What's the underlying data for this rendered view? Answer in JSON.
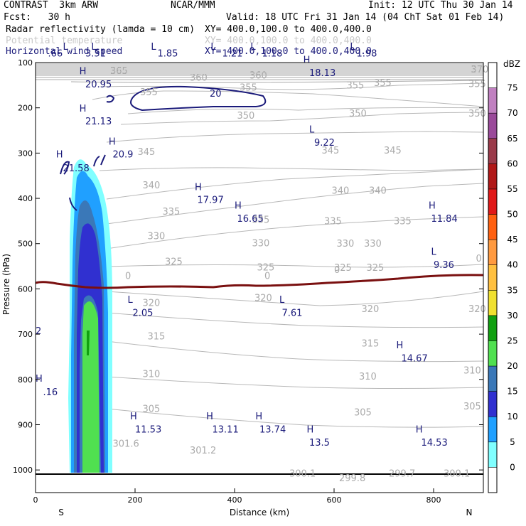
{
  "header": {
    "model": "CONTRAST  3km ARW",
    "org": "NCAR/MMM",
    "init": "Init: 12 UTC Thu 30 Jan 14",
    "fcst": "Fcst:   30 h",
    "valid": "Valid: 18 UTC Fri 31 Jan 14 (04 ChT Sat 01 Feb 14)",
    "fields": [
      {
        "name": "Radar reflectivity (lamda = 10 cm)",
        "xy": "XY= 400.0,100.0 to 400.0,400.0",
        "color": "#000000"
      },
      {
        "name": "Potential temperature",
        "xy": "XY= 400.0,100.0 to 400.0,400.0",
        "color": "#c8c8c8"
      },
      {
        "name": "Horizontal wind speed",
        "xy": "XY= 400.0,100.0 to 400.0,400.0",
        "color": "#1a1a7a"
      }
    ]
  },
  "chart_data": {
    "type": "cross-section",
    "xlabel": "Distance (km)",
    "ylabel": "Pressure (hPa)",
    "xlim": [
      0,
      900
    ],
    "ylim": [
      1050,
      100
    ],
    "x_ticks": [
      "0",
      "200",
      "400",
      "600",
      "800"
    ],
    "y_ticks": [
      "100",
      "200",
      "300",
      "400",
      "500",
      "600",
      "700",
      "800",
      "900",
      "1000"
    ],
    "x_end_labels": {
      "left": "S",
      "right": "N"
    },
    "colorbar": {
      "title": "dBZ",
      "labels": [
        "75",
        "70",
        "65",
        "60",
        "55",
        "50",
        "45",
        "40",
        "35",
        "30",
        "25",
        "20",
        "15",
        "10",
        "5",
        "0"
      ],
      "colors": [
        "#ffffff",
        "#c080c0",
        "#9a4a9a",
        "#9a3a4a",
        "#b01818",
        "#e01818",
        "#ff6010",
        "#ff9a40",
        "#ffc040",
        "#f0e030",
        "#10a010",
        "#50e050",
        "#3a78b8",
        "#3030d0",
        "#20a0ff",
        "#80ffff",
        "#ffffff"
      ]
    },
    "isentrope_labels": [
      {
        "text": "370",
        "x": 875,
        "p": 122
      },
      {
        "text": "365",
        "x": 150,
        "p": 125
      },
      {
        "text": "360",
        "x": 430,
        "p": 135
      },
      {
        "text": "360",
        "x": 310,
        "p": 140
      },
      {
        "text": "355",
        "x": 680,
        "p": 152
      },
      {
        "text": "355",
        "x": 870,
        "p": 154
      },
      {
        "text": "355",
        "x": 625,
        "p": 157
      },
      {
        "text": "355",
        "x": 410,
        "p": 162
      },
      {
        "text": "355",
        "x": 210,
        "p": 172
      },
      {
        "text": "350",
        "x": 405,
        "p": 224
      },
      {
        "text": "350",
        "x": 630,
        "p": 219
      },
      {
        "text": "350",
        "x": 870,
        "p": 219
      },
      {
        "text": "345",
        "x": 205,
        "p": 304
      },
      {
        "text": "345",
        "x": 575,
        "p": 301
      },
      {
        "text": "345",
        "x": 700,
        "p": 301
      },
      {
        "text": "340",
        "x": 215,
        "p": 378
      },
      {
        "text": "340",
        "x": 595,
        "p": 390
      },
      {
        "text": "340",
        "x": 670,
        "p": 390
      },
      {
        "text": "335",
        "x": 255,
        "p": 436
      },
      {
        "text": "335",
        "x": 435,
        "p": 454
      },
      {
        "text": "335",
        "x": 580,
        "p": 457
      },
      {
        "text": "335",
        "x": 720,
        "p": 457
      },
      {
        "text": "330",
        "x": 225,
        "p": 490
      },
      {
        "text": "330",
        "x": 435,
        "p": 506
      },
      {
        "text": "330",
        "x": 605,
        "p": 507
      },
      {
        "text": "330",
        "x": 660,
        "p": 507
      },
      {
        "text": "325",
        "x": 260,
        "p": 547
      },
      {
        "text": "325",
        "x": 445,
        "p": 559
      },
      {
        "text": "325",
        "x": 600,
        "p": 560
      },
      {
        "text": "325",
        "x": 665,
        "p": 560
      },
      {
        "text": "320",
        "x": 215,
        "p": 638
      },
      {
        "text": "320",
        "x": 440,
        "p": 627
      },
      {
        "text": "320",
        "x": 655,
        "p": 651
      },
      {
        "text": "320",
        "x": 870,
        "p": 651
      },
      {
        "text": "315",
        "x": 225,
        "p": 712
      },
      {
        "text": "315",
        "x": 655,
        "p": 727
      },
      {
        "text": "310",
        "x": 215,
        "p": 795
      },
      {
        "text": "310",
        "x": 650,
        "p": 800
      },
      {
        "text": "310",
        "x": 860,
        "p": 787
      },
      {
        "text": "305",
        "x": 215,
        "p": 872
      },
      {
        "text": "305",
        "x": 640,
        "p": 880
      },
      {
        "text": "305",
        "x": 860,
        "p": 866
      },
      {
        "text": "301.6",
        "x": 155,
        "p": 949
      },
      {
        "text": "301.2",
        "x": 310,
        "p": 964
      },
      {
        "text": "300.1",
        "x": 510,
        "p": 1015
      },
      {
        "text": "299.8",
        "x": 610,
        "p": 1025
      },
      {
        "text": "299.7",
        "x": 710,
        "p": 1015
      },
      {
        "text": "300.1",
        "x": 820,
        "p": 1015
      }
    ],
    "wind_labels": [
      {
        "text": ".66",
        "x": 25,
        "p": 87
      },
      {
        "text": "3.51",
        "x": 100,
        "p": 87
      },
      {
        "text": "1.85",
        "x": 245,
        "p": 87
      },
      {
        "text": "1.21",
        "x": 375,
        "p": 87
      },
      {
        "text": "1.18",
        "x": 455,
        "p": 87
      },
      {
        "text": "1.98",
        "x": 645,
        "p": 87
      },
      {
        "text": "L",
        "x": 55,
        "p": 72
      },
      {
        "text": "L",
        "x": 112,
        "p": 72
      },
      {
        "text": "L",
        "x": 232,
        "p": 72
      },
      {
        "text": "L",
        "x": 352,
        "p": 72
      },
      {
        "text": "L",
        "x": 432,
        "p": 72
      },
      {
        "text": "L",
        "x": 632,
        "p": 72
      },
      {
        "text": "H",
        "x": 88,
        "p": 126
      },
      {
        "text": "20.95",
        "x": 100,
        "p": 155
      },
      {
        "text": "H",
        "x": 538,
        "p": 101
      },
      {
        "text": "18.13",
        "x": 550,
        "p": 130
      },
      {
        "text": "20",
        "x": 350,
        "p": 175
      },
      {
        "text": "H",
        "x": 88,
        "p": 208
      },
      {
        "text": "21.13",
        "x": 100,
        "p": 237
      },
      {
        "text": "H",
        "x": 147,
        "p": 281
      },
      {
        "text": "20.9",
        "x": 155,
        "p": 310
      },
      {
        "text": "H",
        "x": 41,
        "p": 310
      },
      {
        "text": "21.58",
        "x": 55,
        "p": 340
      },
      {
        "text": "L",
        "x": 550,
        "p": 255
      },
      {
        "text": "9.22",
        "x": 560,
        "p": 284
      },
      {
        "text": "H",
        "x": 320,
        "p": 382
      },
      {
        "text": "17.97",
        "x": 325,
        "p": 410
      },
      {
        "text": "H",
        "x": 400,
        "p": 423
      },
      {
        "text": "16.65",
        "x": 405,
        "p": 452
      },
      {
        "text": "H",
        "x": 790,
        "p": 423
      },
      {
        "text": "11.84",
        "x": 795,
        "p": 452
      },
      {
        "text": "L",
        "x": 795,
        "p": 525
      },
      {
        "text": "9.36",
        "x": 800,
        "p": 554
      },
      {
        "text": "L",
        "x": 185,
        "p": 631
      },
      {
        "text": "2.05",
        "x": 195,
        "p": 660
      },
      {
        "text": "L",
        "x": 490,
        "p": 631
      },
      {
        "text": "7.61",
        "x": 495,
        "p": 660
      },
      {
        "text": "H",
        "x": 725,
        "p": 731
      },
      {
        "text": "14.67",
        "x": 735,
        "p": 760
      },
      {
        "text": "H",
        "x": 0,
        "p": 805
      },
      {
        "text": ".16",
        "x": 15,
        "p": 835
      },
      {
        "text": "H",
        "x": 190,
        "p": 888
      },
      {
        "text": "11.53",
        "x": 200,
        "p": 917
      },
      {
        "text": "H",
        "x": 343,
        "p": 888
      },
      {
        "text": "13.11",
        "x": 355,
        "p": 917
      },
      {
        "text": "H",
        "x": 442,
        "p": 888
      },
      {
        "text": "13.74",
        "x": 450,
        "p": 917
      },
      {
        "text": "H",
        "x": 545,
        "p": 917
      },
      {
        "text": "13.5",
        "x": 550,
        "p": 946
      },
      {
        "text": "H",
        "x": 764,
        "p": 917
      },
      {
        "text": "14.53",
        "x": 775,
        "p": 946
      }
    ],
    "freezing_line_labels": [
      {
        "text": "0",
        "x": 180,
        "p": 578
      },
      {
        "text": "0",
        "x": 460,
        "p": 578
      },
      {
        "text": "0",
        "x": 600,
        "p": 565
      },
      {
        "text": "0",
        "x": 885,
        "p": 540
      }
    ],
    "edge_labels": [
      {
        "text": "2",
        "x": 0,
        "p": 700
      }
    ]
  }
}
